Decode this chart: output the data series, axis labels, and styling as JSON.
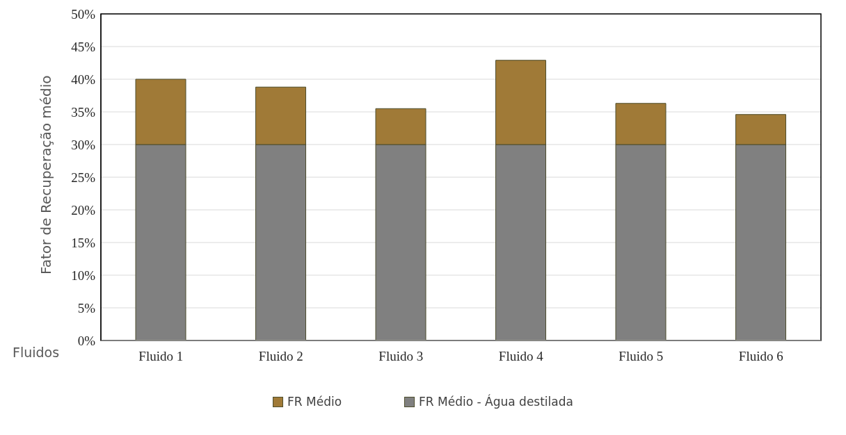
{
  "chart_data": {
    "type": "bar",
    "ylabel": "Fator de Recuperação médio",
    "xlabel": "Fluidos",
    "categories": [
      "Fluido 1",
      "Fluido 2",
      "Fluido 3",
      "Fluido 4",
      "Fluido 5",
      "Fluido 6"
    ],
    "stacked": true,
    "series": [
      {
        "name": "FR Médio - Água destilada",
        "color": "#808080",
        "values": [
          30,
          30,
          30,
          30,
          30,
          30
        ]
      },
      {
        "name": "FR Médio",
        "color": "#a07a37",
        "values": [
          10.0,
          8.8,
          5.5,
          12.9,
          6.3,
          4.6
        ]
      }
    ],
    "ylim": [
      0,
      50
    ],
    "yticks": [
      {
        "value": 0,
        "label": "0%"
      },
      {
        "value": 5,
        "label": "5%"
      },
      {
        "value": 10,
        "label": "10%"
      },
      {
        "value": 15,
        "label": "15%"
      },
      {
        "value": 20,
        "label": "20%"
      },
      {
        "value": 25,
        "label": "25%"
      },
      {
        "value": 30,
        "label": "30%"
      },
      {
        "value": 35,
        "label": "35%"
      },
      {
        "value": 40,
        "label": "40%"
      },
      {
        "value": 45,
        "label": "45%"
      },
      {
        "value": 50,
        "label": "50%"
      }
    ],
    "grid": "y",
    "legend": "bottom"
  }
}
